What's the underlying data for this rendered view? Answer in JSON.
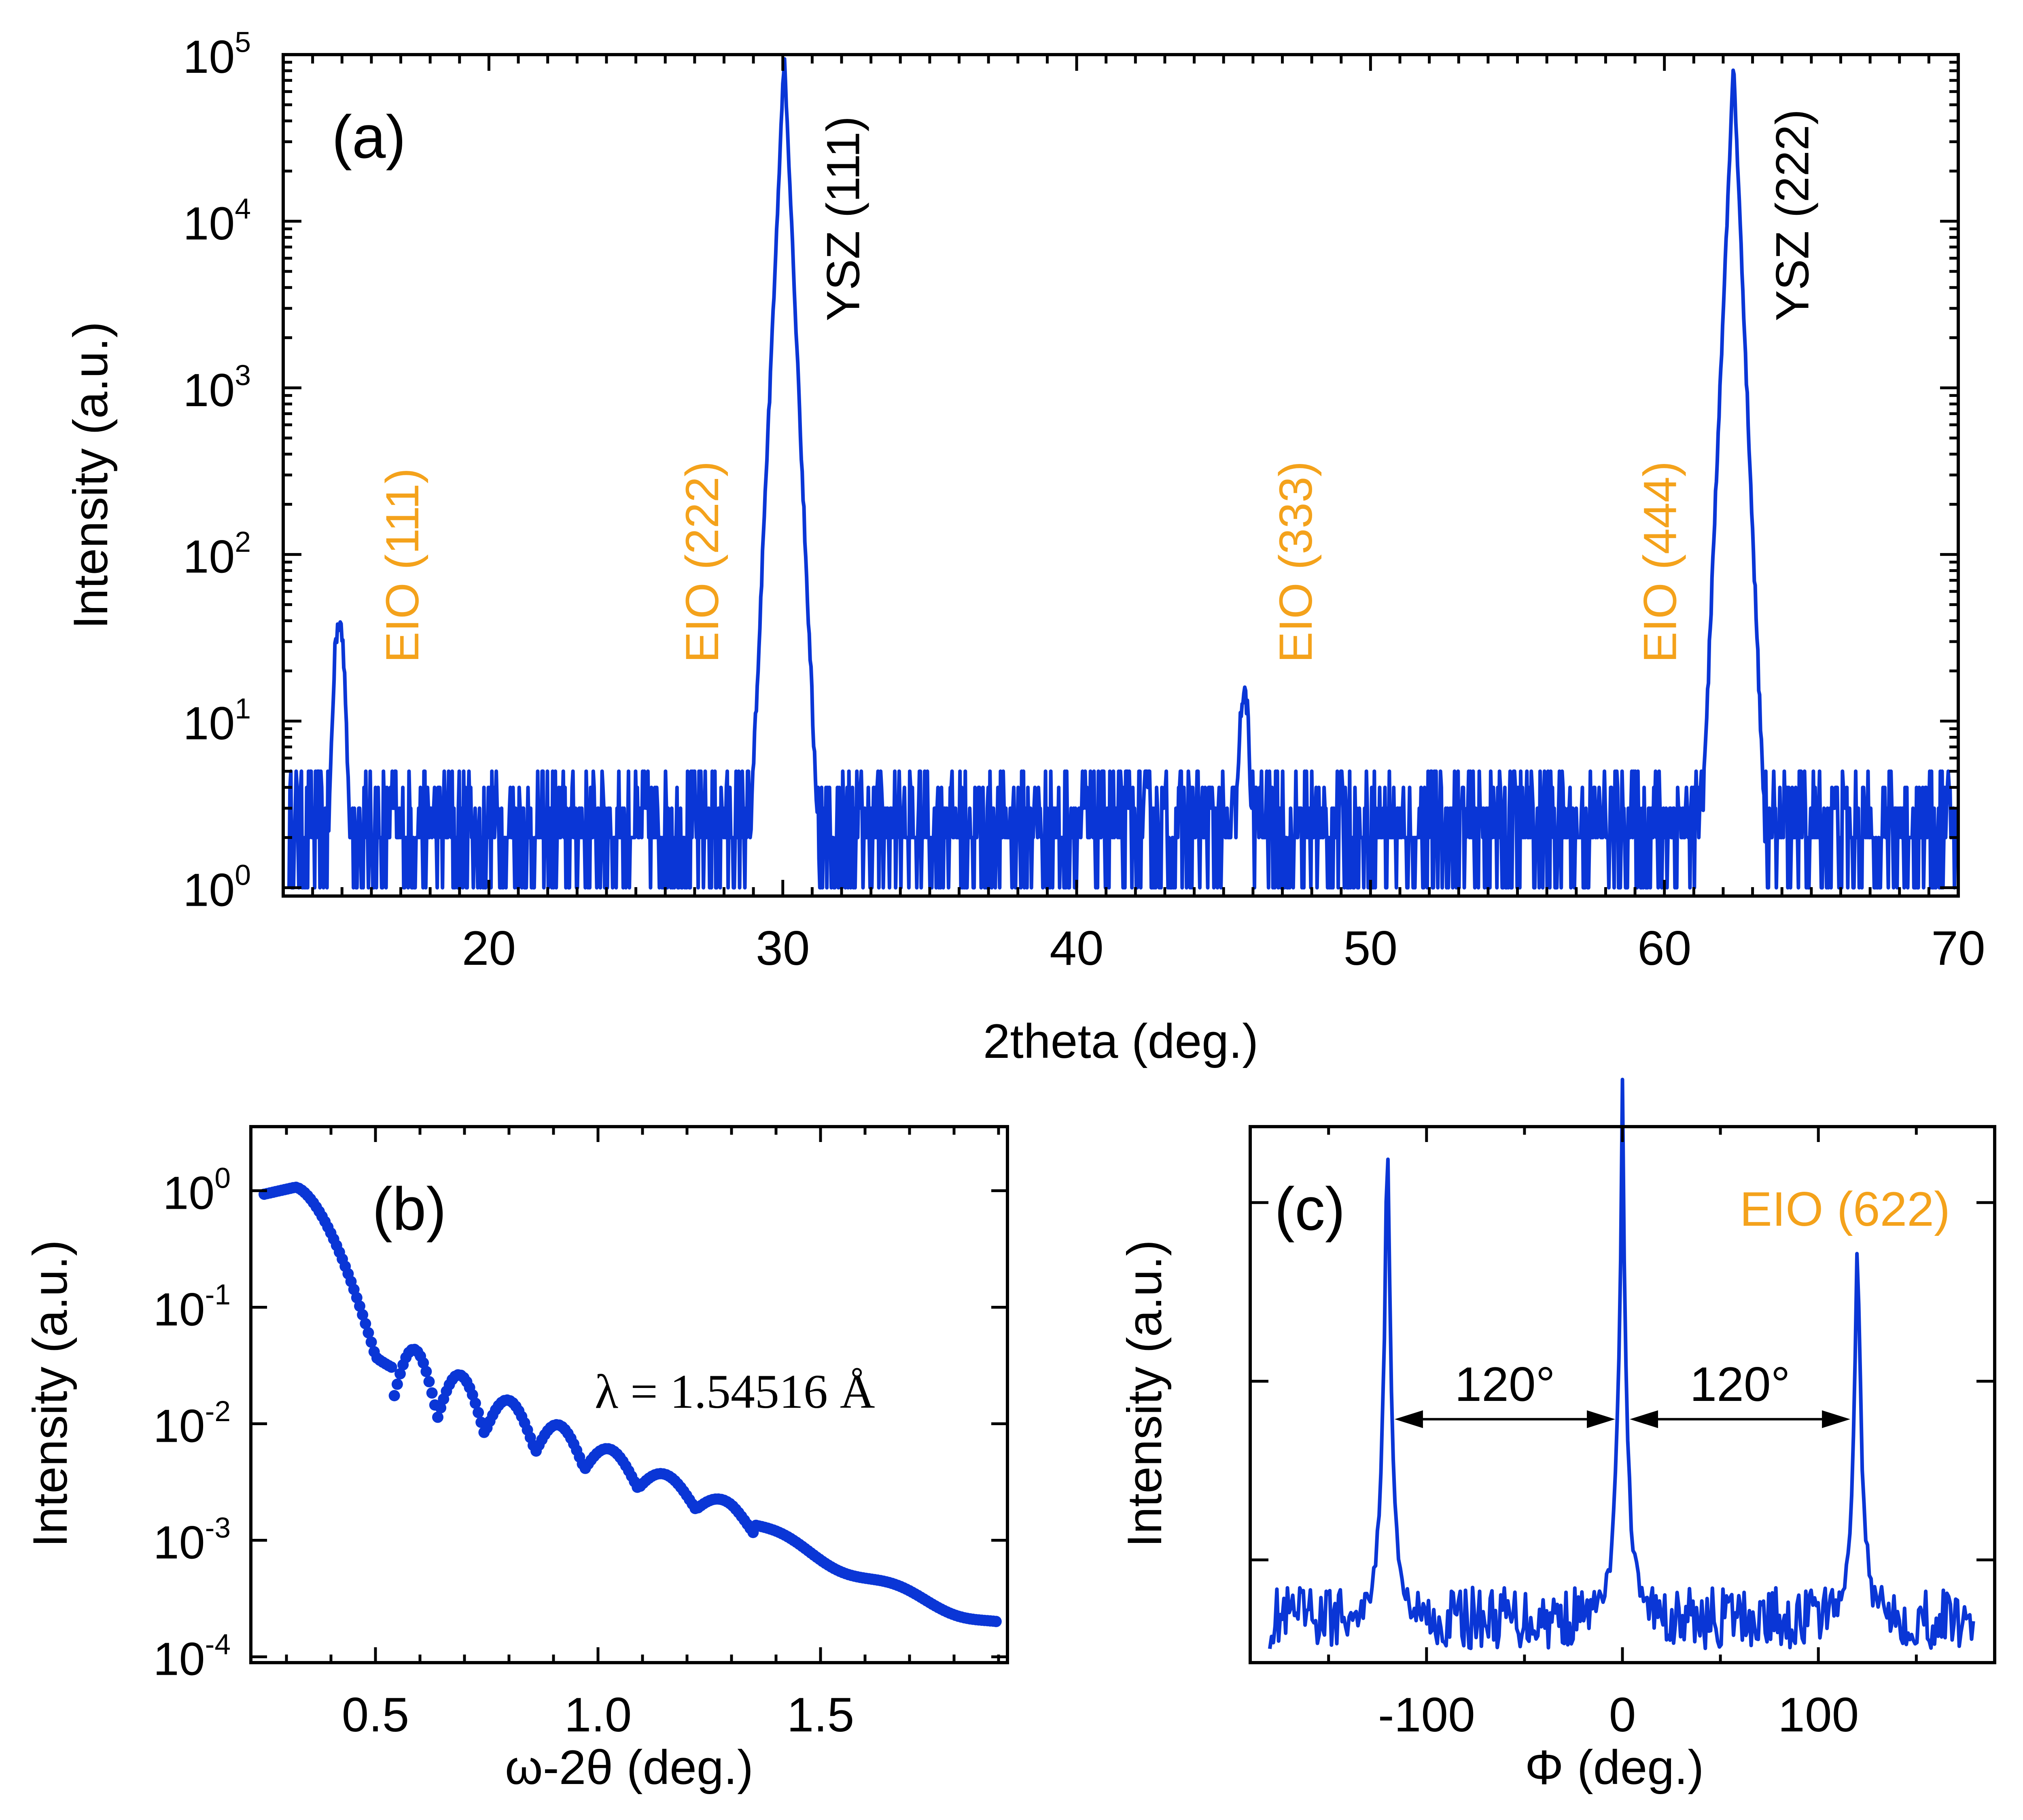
{
  "chart_data": [
    {
      "id": "a",
      "type": "line",
      "panel_label": "(a)",
      "xlabel": "2theta (deg.)",
      "ylabel": "Intensity (a.u.)",
      "xlim": [
        13,
        70
      ],
      "ylim_log10": [
        -0.05,
        5
      ],
      "xticks": [
        20,
        30,
        40,
        50,
        60,
        70
      ],
      "yticks_exp": [
        "0",
        "1",
        "2",
        "3",
        "4",
        "5"
      ],
      "y_base": "10",
      "color": "#0a36d6",
      "peaks": [
        {
          "x": 14.9,
          "log_height": 1.6,
          "width": 0.22
        },
        {
          "x": 30.05,
          "log_height": 5.0,
          "width": 0.14
        },
        {
          "x": 45.7,
          "log_height": 1.2,
          "width": 0.2
        },
        {
          "x": 62.35,
          "log_height": 4.95,
          "width": 0.15
        }
      ],
      "annotations": [
        {
          "text": "EIO (111)",
          "x": 17.6,
          "y_log": 1.35,
          "color": "#f4a21b"
        },
        {
          "text": "EIO (222)",
          "x": 27.8,
          "y_log": 1.35,
          "color": "#f4a21b"
        },
        {
          "text": "EIO (333)",
          "x": 48.0,
          "y_log": 1.35,
          "color": "#f4a21b"
        },
        {
          "text": "EIO (444)",
          "x": 60.4,
          "y_log": 1.35,
          "color": "#f4a21b"
        },
        {
          "text": "YSZ (111)",
          "x": 32.6,
          "y_log": 3.4,
          "color": "#000000"
        },
        {
          "text": "YSZ (222)",
          "x": 64.9,
          "y_log": 3.4,
          "color": "#000000"
        }
      ]
    },
    {
      "id": "b",
      "type": "scatter",
      "panel_label": "(b)",
      "xlabel": "ω-2θ (deg.)",
      "ylabel": "Intensity (a.u.)",
      "xlim": [
        0.22,
        1.92
      ],
      "ylim_log10": [
        -4.05,
        0.55
      ],
      "xticks": [
        "0.5",
        "1.0",
        "1.5"
      ],
      "yticks_exp": [
        "0",
        "-1",
        "-2",
        "-3",
        "-4"
      ],
      "y_base": "10",
      "color": "#0a36d6",
      "annotation": "λ = 1.54516 Å",
      "x_range": [
        0.25,
        1.9
      ],
      "oscillation_minima": [
        0.54,
        0.64,
        0.745,
        0.86,
        0.97,
        1.09,
        1.22,
        1.35
      ],
      "end_value_log": -3.85
    },
    {
      "id": "c",
      "type": "line",
      "panel_label": "(c)",
      "xlabel": "Φ (deg.)",
      "ylabel": "Intensity (a.u.)",
      "xlim": [
        -190,
        190
      ],
      "ylim": [
        0,
        1.2
      ],
      "xticks": [
        "-100",
        "0",
        "100"
      ],
      "color": "#0a36d6",
      "annotation": "EIO (622)",
      "annotation_color": "#f4a21b",
      "peaks": [
        {
          "x": -120,
          "height": 1.0
        },
        {
          "x": 0,
          "height": 1.0
        },
        {
          "x": 120,
          "height": 0.78
        }
      ],
      "intervals": [
        {
          "label": "120°",
          "from": -120,
          "to": 0
        },
        {
          "label": "120°",
          "from": 0,
          "to": 120
        }
      ]
    }
  ]
}
